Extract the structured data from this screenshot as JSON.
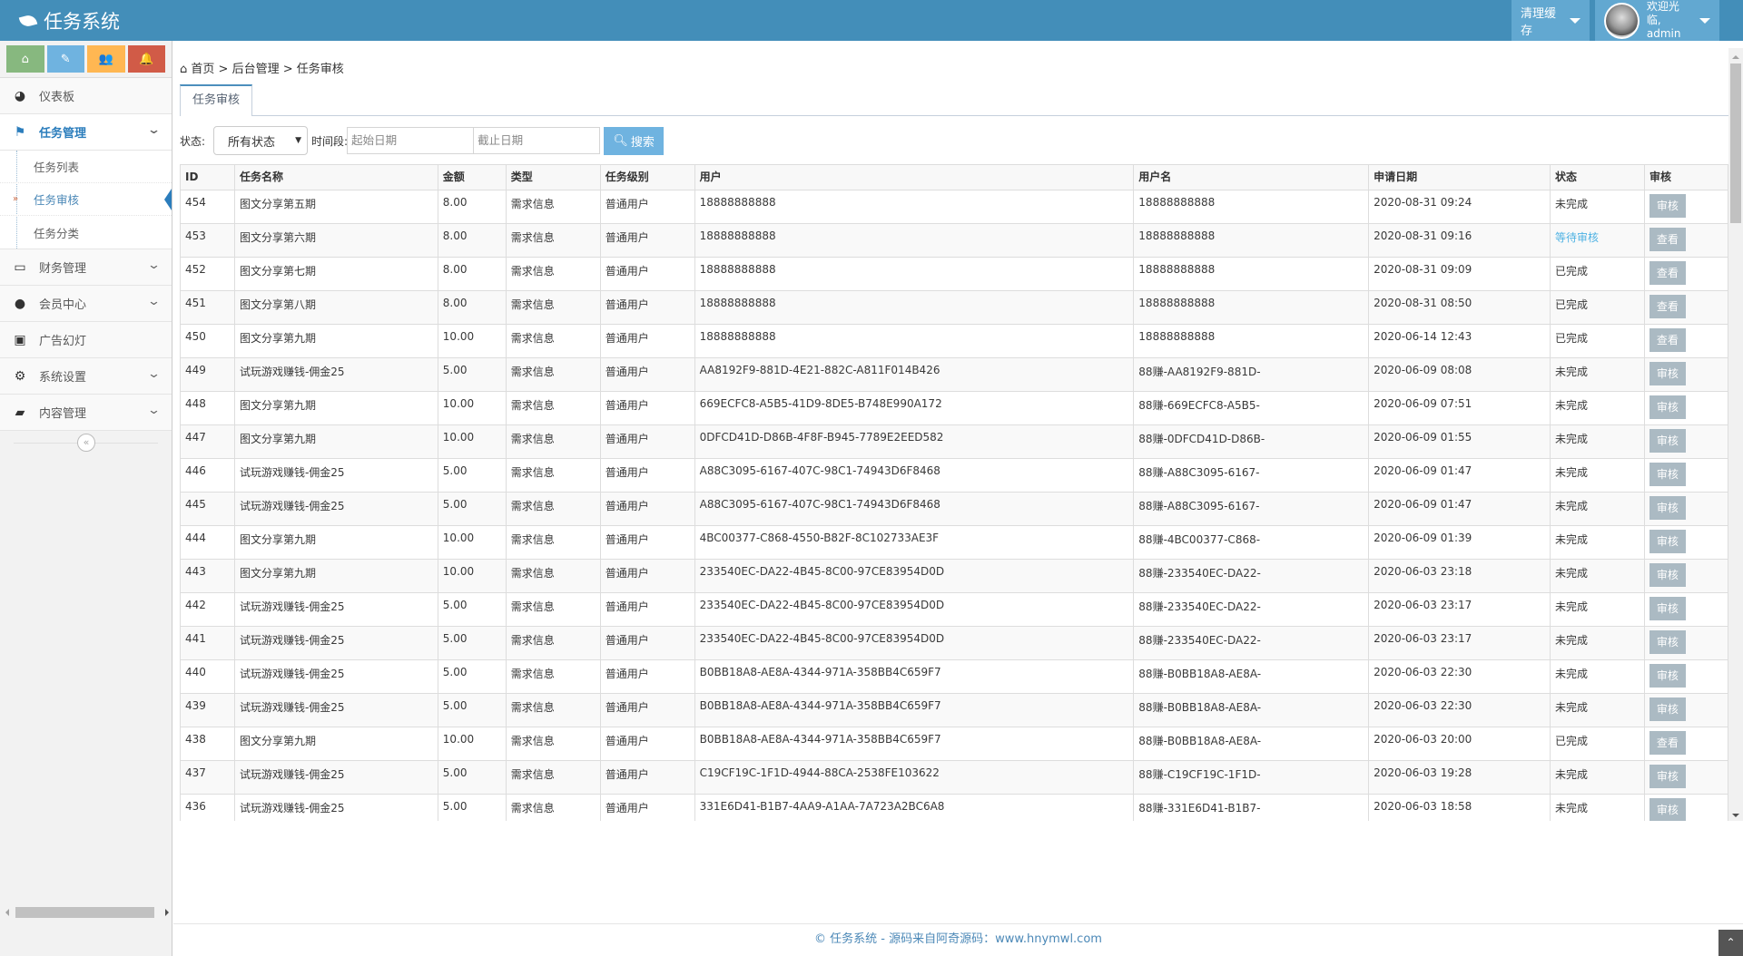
{
  "header": {
    "title": "任务系统",
    "clear_cache": "清理缓存",
    "welcome": "欢迎光临,",
    "user": "admin"
  },
  "shortcuts": [
    {
      "icon": "home-icon",
      "color": "#87b87f"
    },
    {
      "icon": "pencil-icon",
      "color": "#6fb3e0"
    },
    {
      "icon": "users-icon",
      "color": "#ffb752"
    },
    {
      "icon": "bell-icon",
      "color": "#d15b47"
    }
  ],
  "sidebar": {
    "items": [
      {
        "label": "仪表板",
        "icon": "dashboard-icon"
      },
      {
        "label": "任务管理",
        "icon": "flag-icon",
        "open": true
      },
      {
        "label": "财务管理",
        "icon": "hdd-icon"
      },
      {
        "label": "会员中心",
        "icon": "user-icon"
      },
      {
        "label": "广告幻灯",
        "icon": "picture-icon"
      },
      {
        "label": "系统设置",
        "icon": "gear-icon"
      },
      {
        "label": "内容管理",
        "icon": "book-icon"
      }
    ],
    "sub_items": [
      {
        "label": "任务列表"
      },
      {
        "label": "任务审核",
        "active": true
      },
      {
        "label": "任务分类"
      }
    ]
  },
  "breadcrumb": [
    "首页",
    "后台管理",
    "任务审核"
  ],
  "tabs": [
    {
      "label": "任务审核"
    }
  ],
  "filters": {
    "status_label": "状态:",
    "status_value": "所有状态",
    "period_label": "时间段:",
    "start_placeholder": "起始日期",
    "end_placeholder": "截止日期",
    "search": "搜索"
  },
  "table": {
    "columns": [
      "ID",
      "任务名称",
      "金额",
      "类型",
      "任务级别",
      "用户",
      "用户名",
      "申请日期",
      "状态",
      "审核"
    ],
    "rows": [
      [
        "454",
        "图文分享第五期",
        "8.00",
        "需求信息",
        "普通用户",
        "18888888888",
        "18888888888",
        "2020-08-31 09:24",
        "未完成",
        "审核"
      ],
      [
        "453",
        "图文分享第六期",
        "8.00",
        "需求信息",
        "普通用户",
        "18888888888",
        "18888888888",
        "2020-08-31 09:16",
        "等待审核",
        "查看"
      ],
      [
        "452",
        "图文分享第七期",
        "8.00",
        "需求信息",
        "普通用户",
        "18888888888",
        "18888888888",
        "2020-08-31 09:09",
        "已完成",
        "查看"
      ],
      [
        "451",
        "图文分享第八期",
        "8.00",
        "需求信息",
        "普通用户",
        "18888888888",
        "18888888888",
        "2020-08-31 08:50",
        "已完成",
        "查看"
      ],
      [
        "450",
        "图文分享第九期",
        "10.00",
        "需求信息",
        "普通用户",
        "18888888888",
        "18888888888",
        "2020-06-14 12:43",
        "已完成",
        "查看"
      ],
      [
        "449",
        "试玩游戏赚钱-佣金25",
        "5.00",
        "需求信息",
        "普通用户",
        "AA8192F9-881D-4E21-882C-A811F014B426",
        "88赚-AA8192F9-881D-",
        "2020-06-09 08:08",
        "未完成",
        "审核"
      ],
      [
        "448",
        "图文分享第九期",
        "10.00",
        "需求信息",
        "普通用户",
        "669ECFC8-A5B5-41D9-8DE5-B748E990A172",
        "88赚-669ECFC8-A5B5-",
        "2020-06-09 07:51",
        "未完成",
        "审核"
      ],
      [
        "447",
        "图文分享第九期",
        "10.00",
        "需求信息",
        "普通用户",
        "0DFCD41D-D86B-4F8F-B945-7789E2EED582",
        "88赚-0DFCD41D-D86B-",
        "2020-06-09 01:55",
        "未完成",
        "审核"
      ],
      [
        "446",
        "试玩游戏赚钱-佣金25",
        "5.00",
        "需求信息",
        "普通用户",
        "A88C3095-6167-407C-98C1-74943D6F8468",
        "88赚-A88C3095-6167-",
        "2020-06-09 01:47",
        "未完成",
        "审核"
      ],
      [
        "445",
        "试玩游戏赚钱-佣金25",
        "5.00",
        "需求信息",
        "普通用户",
        "A88C3095-6167-407C-98C1-74943D6F8468",
        "88赚-A88C3095-6167-",
        "2020-06-09 01:47",
        "未完成",
        "审核"
      ],
      [
        "444",
        "图文分享第九期",
        "10.00",
        "需求信息",
        "普通用户",
        "4BC00377-C868-4550-B82F-8C102733AE3F",
        "88赚-4BC00377-C868-",
        "2020-06-09 01:39",
        "未完成",
        "审核"
      ],
      [
        "443",
        "图文分享第九期",
        "10.00",
        "需求信息",
        "普通用户",
        "233540EC-DA22-4B45-8C00-97CE83954D0D",
        "88赚-233540EC-DA22-",
        "2020-06-03 23:18",
        "未完成",
        "审核"
      ],
      [
        "442",
        "试玩游戏赚钱-佣金25",
        "5.00",
        "需求信息",
        "普通用户",
        "233540EC-DA22-4B45-8C00-97CE83954D0D",
        "88赚-233540EC-DA22-",
        "2020-06-03 23:17",
        "未完成",
        "审核"
      ],
      [
        "441",
        "试玩游戏赚钱-佣金25",
        "5.00",
        "需求信息",
        "普通用户",
        "233540EC-DA22-4B45-8C00-97CE83954D0D",
        "88赚-233540EC-DA22-",
        "2020-06-03 23:17",
        "未完成",
        "审核"
      ],
      [
        "440",
        "试玩游戏赚钱-佣金25",
        "5.00",
        "需求信息",
        "普通用户",
        "B0BB18A8-AE8A-4344-971A-358BB4C659F7",
        "88赚-B0BB18A8-AE8A-",
        "2020-06-03 22:30",
        "未完成",
        "审核"
      ],
      [
        "439",
        "试玩游戏赚钱-佣金25",
        "5.00",
        "需求信息",
        "普通用户",
        "B0BB18A8-AE8A-4344-971A-358BB4C659F7",
        "88赚-B0BB18A8-AE8A-",
        "2020-06-03 22:30",
        "未完成",
        "审核"
      ],
      [
        "438",
        "图文分享第九期",
        "10.00",
        "需求信息",
        "普通用户",
        "B0BB18A8-AE8A-4344-971A-358BB4C659F7",
        "88赚-B0BB18A8-AE8A-",
        "2020-06-03 20:00",
        "已完成",
        "查看"
      ],
      [
        "437",
        "试玩游戏赚钱-佣金25",
        "5.00",
        "需求信息",
        "普通用户",
        "C19CF19C-1F1D-4944-88CA-2538FE103622",
        "88赚-C19CF19C-1F1D-",
        "2020-06-03 19:28",
        "未完成",
        "审核"
      ],
      [
        "436",
        "试玩游戏赚钱-佣金25",
        "5.00",
        "需求信息",
        "普通用户",
        "331E6D41-B1B7-4AA9-A1AA-7A723A2BC6A8",
        "88赚-331E6D41-B1B7-",
        "2020-06-03 18:58",
        "未完成",
        "审核"
      ]
    ]
  },
  "footer": {
    "text": "© 任务系统 - 源码来自阿奇源码：www.hnymwl.com"
  },
  "colors": {
    "header": "#438eb9",
    "accent": "#2b7dbc",
    "waiting": "#4fb2e3"
  }
}
